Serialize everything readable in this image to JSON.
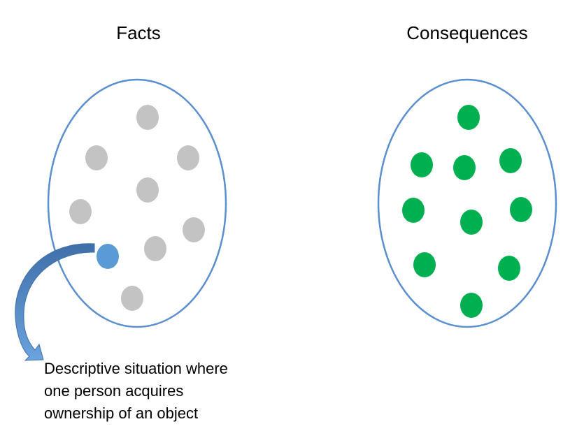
{
  "facts": {
    "title": "Facts"
  },
  "consequences": {
    "title": "Consequences"
  },
  "caption": {
    "lines": [
      "Descriptive situation where",
      "one person acquires",
      "ownership of an object"
    ]
  },
  "colors": {
    "ellipse_stroke": "#5b8fd0",
    "fact_dot": "#c3c3c3",
    "selected_fact_dot": "#5b9bd5",
    "consequence_dot": "#00b050",
    "arrow": "#4f81bd"
  }
}
